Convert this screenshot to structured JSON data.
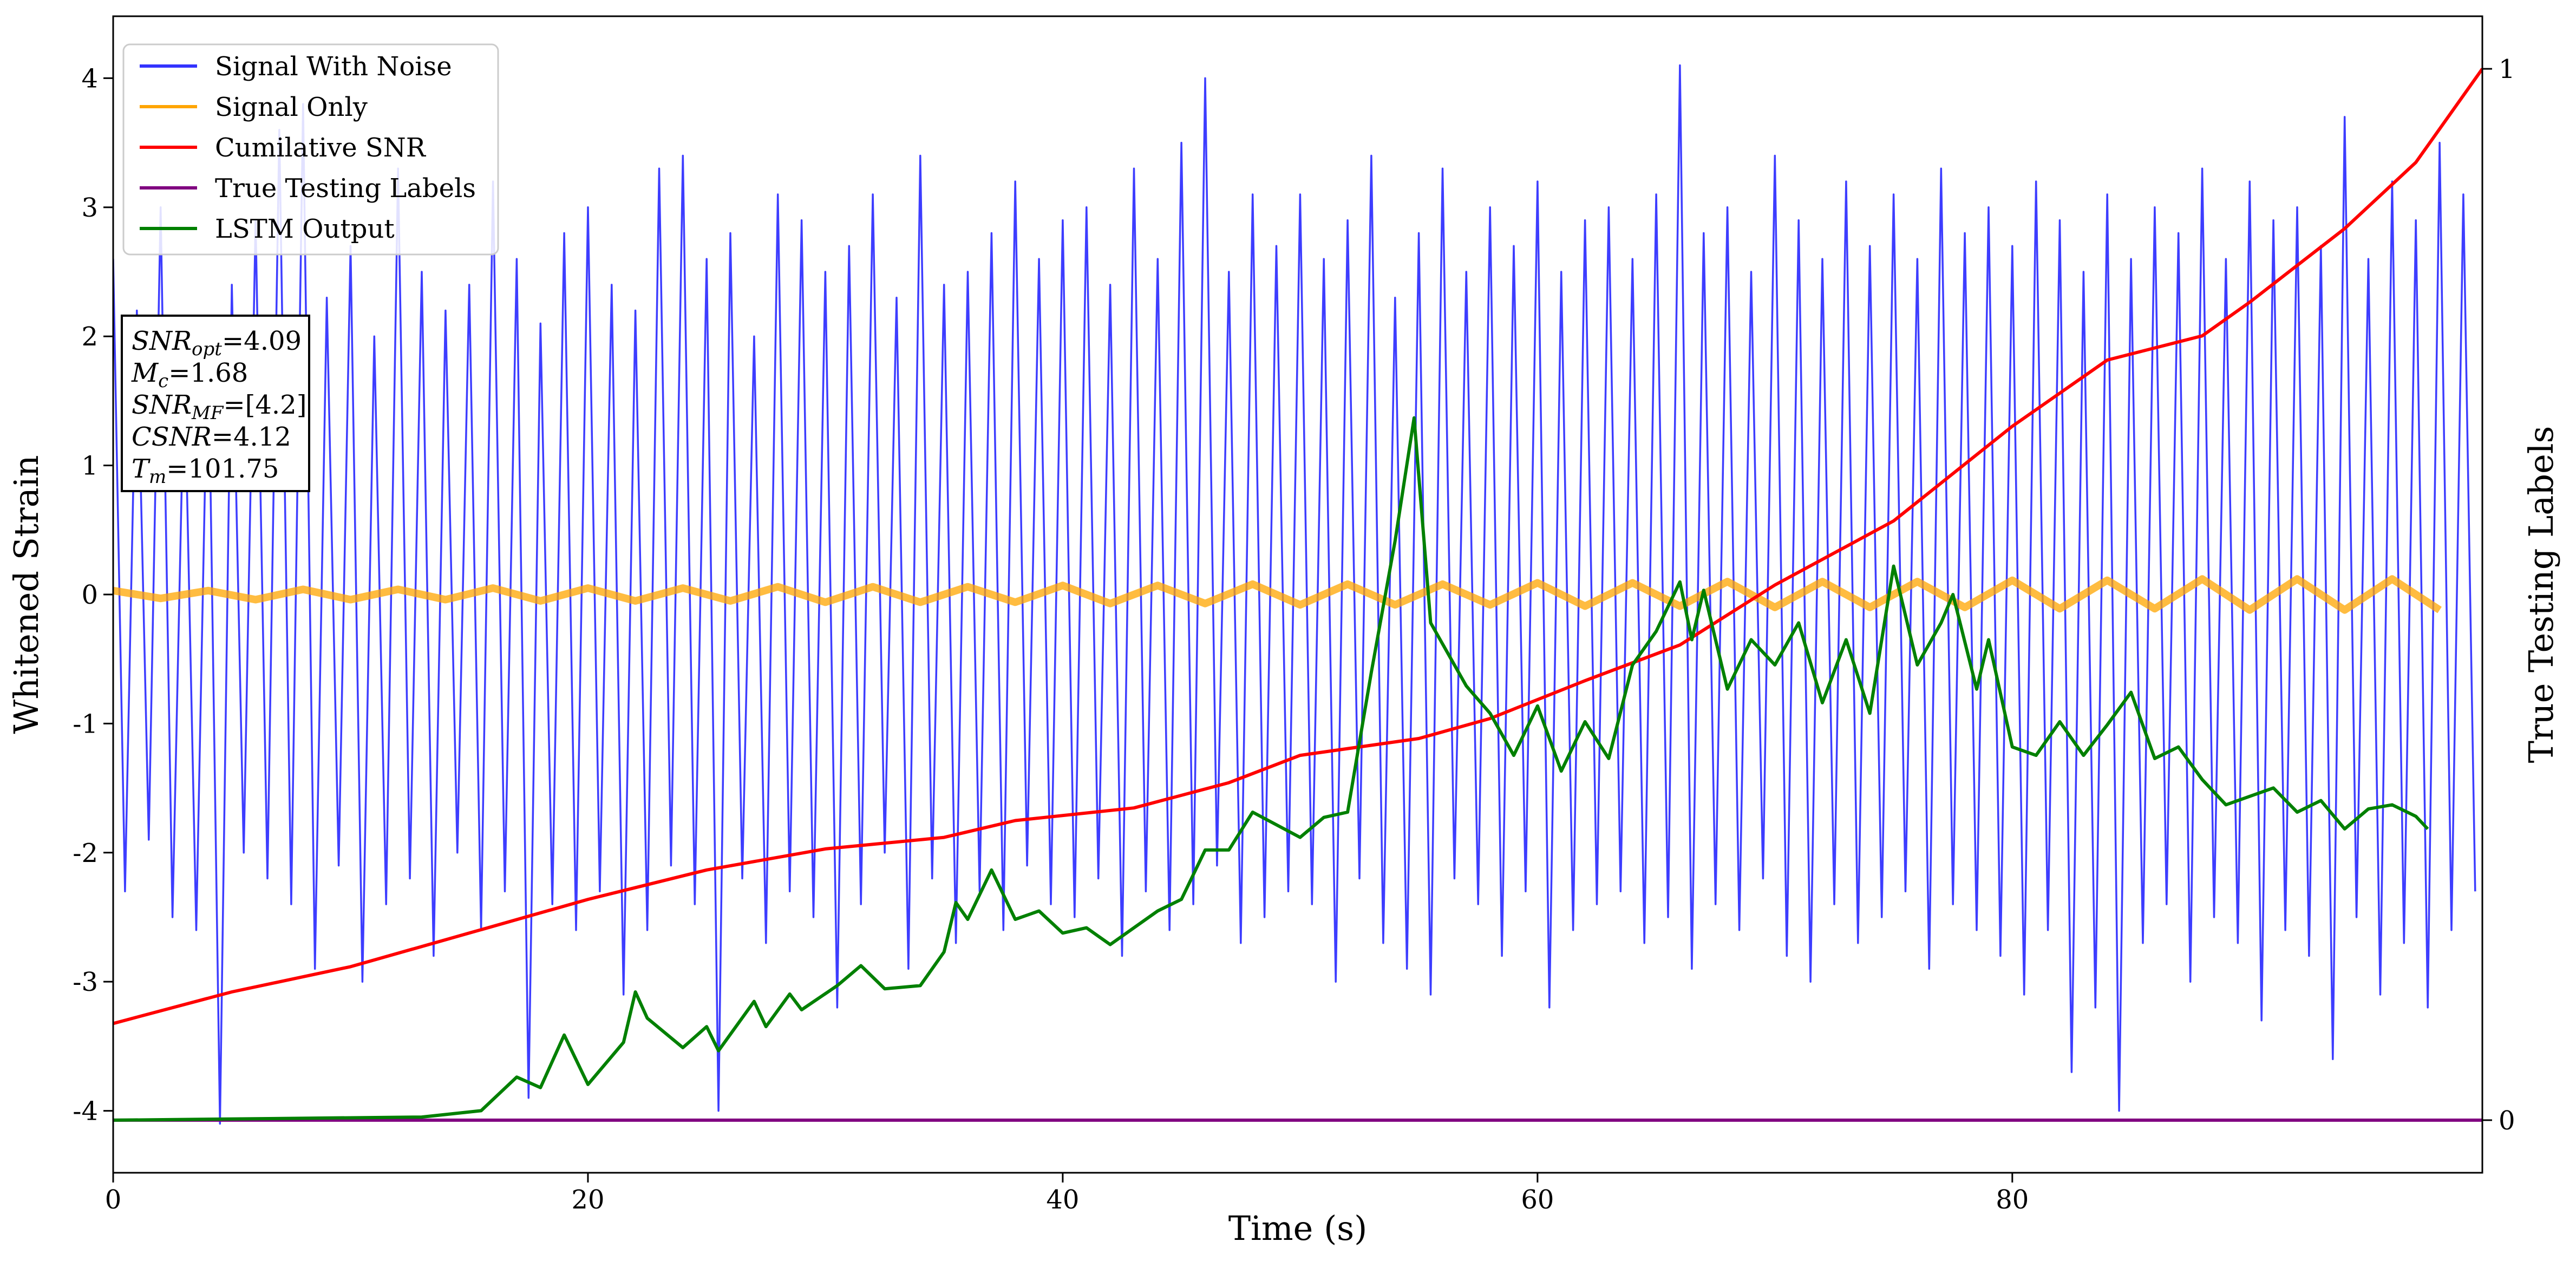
{
  "chart_data": {
    "type": "line",
    "xlabel": "Time (s)",
    "ylabel": "Whitened Strain",
    "y2label": "True Testing Labels",
    "xlim": [
      0,
      99.8
    ],
    "xticks": [
      0,
      20,
      40,
      60,
      80
    ],
    "ylim": [
      -4.48,
      4.48
    ],
    "yticks": [
      -4,
      -3,
      -2,
      -1,
      0,
      1,
      2,
      3,
      4
    ],
    "y2lim": [
      -0.05,
      1.05
    ],
    "y2ticks": [
      0,
      1
    ],
    "legend": "upper left",
    "annotation": [
      {
        "name": "SNR",
        "sub": "opt",
        "value": "=4.09"
      },
      {
        "name": "M",
        "sub": "c",
        "value": "=1.68"
      },
      {
        "name": "SNR",
        "sub": "MF",
        "value": "=[4.2]"
      },
      {
        "name": "CSNR",
        "value": "=4.12"
      },
      {
        "name": "T",
        "sub": "m",
        "value": "=101.75"
      }
    ],
    "series": [
      {
        "name": "Signal With Noise",
        "color": "#3333ff",
        "x": [
          0,
          0.5,
          1,
          1.5,
          2,
          2.5,
          3,
          3.5,
          4,
          4.5,
          5,
          5.5,
          6,
          6.5,
          7,
          7.5,
          8,
          8.5,
          9,
          9.5,
          10,
          10.5,
          11,
          11.5,
          12,
          12.5,
          13,
          13.5,
          14,
          14.5,
          15,
          15.5,
          16,
          16.5,
          17,
          17.5,
          18,
          18.5,
          19,
          19.5,
          20,
          20.5,
          21,
          21.5,
          22,
          22.5,
          23,
          23.5,
          24,
          24.5,
          25,
          25.5,
          26,
          26.5,
          27,
          27.5,
          28,
          28.5,
          29,
          29.5,
          30,
          30.5,
          31,
          31.5,
          32,
          32.5,
          33,
          33.5,
          34,
          34.5,
          35,
          35.5,
          36,
          36.5,
          37,
          37.5,
          38,
          38.5,
          39,
          39.5,
          40,
          40.5,
          41,
          41.5,
          42,
          42.5,
          43,
          43.5,
          44,
          44.5,
          45,
          45.5,
          46,
          46.5,
          47,
          47.5,
          48,
          48.5,
          49,
          49.5,
          50,
          50.5,
          51,
          51.5,
          52,
          52.5,
          53,
          53.5,
          54,
          54.5,
          55,
          55.5,
          56,
          56.5,
          57,
          57.5,
          58,
          58.5,
          59,
          59.5,
          60,
          60.5,
          61,
          61.5,
          62,
          62.5,
          63,
          63.5,
          64,
          64.5,
          65,
          65.5,
          66,
          66.5,
          67,
          67.5,
          68,
          68.5,
          69,
          69.5,
          70,
          70.5,
          71,
          71.5,
          72,
          72.5,
          73,
          73.5,
          74,
          74.5,
          75,
          75.5,
          76,
          76.5,
          77,
          77.5,
          78,
          78.5,
          79,
          79.5,
          80,
          80.5,
          81,
          81.5,
          82,
          82.5,
          83,
          83.5,
          84,
          84.5,
          85,
          85.5,
          86,
          86.5,
          87,
          87.5,
          88,
          88.5,
          89,
          89.5,
          90,
          90.5,
          91,
          91.5,
          92,
          92.5,
          93,
          93.5,
          94,
          94.5,
          95,
          95.5,
          96,
          96.5,
          97,
          97.5,
          98,
          98.5,
          99,
          99.5
        ],
        "values": [
          2.6,
          -2.3,
          2.2,
          -1.9,
          3.0,
          -2.5,
          1.8,
          -2.6,
          2.1,
          -4.1,
          2.4,
          -2.0,
          2.9,
          -2.2,
          3.6,
          -2.4,
          3.8,
          -2.9,
          2.3,
          -2.1,
          2.7,
          -3.0,
          2.0,
          -2.4,
          3.3,
          -2.2,
          2.5,
          -2.8,
          2.2,
          -2.0,
          2.4,
          -2.6,
          3.2,
          -2.3,
          2.6,
          -3.9,
          2.1,
          -2.4,
          2.8,
          -2.6,
          3.0,
          -2.3,
          2.4,
          -3.1,
          2.2,
          -2.6,
          3.3,
          -2.1,
          3.4,
          -2.4,
          2.6,
          -4.0,
          2.8,
          -2.2,
          2.0,
          -2.7,
          3.1,
          -2.3,
          2.9,
          -2.5,
          2.5,
          -3.2,
          2.7,
          -2.4,
          3.1,
          -2.0,
          2.3,
          -2.9,
          3.4,
          -2.2,
          2.4,
          -2.7,
          2.5,
          -2.3,
          2.8,
          -2.6,
          3.2,
          -2.1,
          2.6,
          -2.4,
          2.9,
          -2.5,
          3.0,
          -2.2,
          2.4,
          -2.8,
          3.3,
          -2.3,
          2.6,
          -2.6,
          3.5,
          -2.4,
          4.0,
          -2.1,
          2.5,
          -2.7,
          3.1,
          -2.5,
          2.7,
          -2.3,
          3.1,
          -2.4,
          2.6,
          -3.0,
          2.9,
          -2.2,
          3.4,
          -2.7,
          2.3,
          -2.9,
          2.8,
          -3.1,
          3.3,
          -2.2,
          2.5,
          -2.4,
          3.0,
          -2.8,
          2.7,
          -2.3,
          3.2,
          -3.2,
          2.5,
          -2.6,
          2.9,
          -2.4,
          3.0,
          -2.3,
          2.6,
          -2.7,
          3.1,
          -2.5,
          4.1,
          -2.9,
          2.8,
          -2.4,
          3.0,
          -2.6,
          2.5,
          -2.2,
          3.4,
          -2.8,
          2.9,
          -3.0,
          2.6,
          -2.4,
          3.2,
          -2.7,
          2.7,
          -2.5,
          3.1,
          -2.3,
          2.6,
          -2.9,
          3.3,
          -2.4,
          2.8,
          -2.6,
          3.0,
          -2.8,
          2.7,
          -3.1,
          3.2,
          -2.6,
          2.9,
          -3.7,
          2.5,
          -3.2,
          3.1,
          -4.0,
          2.6,
          -2.7,
          3.0,
          -2.4,
          2.8,
          -3.0,
          3.3,
          -2.5,
          2.6,
          -2.7,
          3.2,
          -3.3,
          2.9,
          -2.6,
          3.0,
          -2.8,
          2.7,
          -3.6,
          3.7,
          -2.5,
          2.6,
          -3.1,
          3.2,
          -2.7,
          2.9,
          -3.2,
          3.5,
          -2.6,
          3.1,
          -2.3
        ]
      },
      {
        "name": "Signal Only",
        "color": "orange",
        "x": [
          0,
          2,
          4,
          6,
          8,
          10,
          12,
          14,
          16,
          18,
          20,
          22,
          24,
          26,
          28,
          30,
          32,
          34,
          36,
          38,
          40,
          42,
          44,
          46,
          48,
          50,
          52,
          54,
          56,
          58,
          60,
          62,
          64,
          66,
          68,
          70,
          72,
          74,
          76,
          78,
          80,
          82,
          84,
          86,
          88,
          90,
          92,
          94,
          96,
          98
        ],
        "values": [
          0.03,
          -0.03,
          0.03,
          -0.04,
          0.04,
          -0.04,
          0.04,
          -0.04,
          0.05,
          -0.05,
          0.05,
          -0.05,
          0.05,
          -0.05,
          0.06,
          -0.06,
          0.06,
          -0.06,
          0.06,
          -0.06,
          0.07,
          -0.07,
          0.07,
          -0.07,
          0.08,
          -0.08,
          0.08,
          -0.08,
          0.08,
          -0.08,
          0.09,
          -0.09,
          0.09,
          -0.09,
          0.1,
          -0.1,
          0.1,
          -0.1,
          0.1,
          -0.1,
          0.11,
          -0.11,
          0.11,
          -0.11,
          0.12,
          -0.12,
          0.12,
          -0.12,
          0.12,
          -0.12
        ]
      },
      {
        "name": "Cumilative SNR",
        "color": "red",
        "axis": "y2",
        "x": [
          0,
          5,
          10,
          15,
          20,
          25,
          30,
          35,
          38,
          43,
          47,
          50,
          55,
          58,
          62,
          66,
          70,
          75,
          80,
          84,
          88,
          90,
          94,
          97,
          99.8
        ],
        "values": [
          0.092,
          0.122,
          0.146,
          0.178,
          0.21,
          0.238,
          0.258,
          0.269,
          0.285,
          0.297,
          0.321,
          0.347,
          0.363,
          0.382,
          0.418,
          0.452,
          0.509,
          0.57,
          0.66,
          0.723,
          0.746,
          0.778,
          0.848,
          0.911,
          1.0
        ]
      },
      {
        "name": "True Testing Labels",
        "color": "purple",
        "axis": "y2",
        "x": [
          0,
          99.8
        ],
        "values": [
          0,
          0
        ]
      },
      {
        "name": "LSTM Output",
        "color": "green",
        "axis": "y2",
        "x": [
          0,
          13,
          15.5,
          17,
          18,
          19,
          20,
          21.5,
          22,
          22.5,
          24,
          25,
          25.5,
          27,
          27.5,
          28.5,
          29,
          30.5,
          31.5,
          32.5,
          34,
          35,
          35.5,
          36,
          37,
          38,
          39,
          40,
          41,
          42,
          44,
          45,
          46,
          47,
          48,
          50,
          51,
          52,
          53,
          54,
          54.8,
          55.5,
          57,
          58,
          59,
          60,
          61,
          62,
          63,
          64,
          65,
          66,
          66.5,
          67,
          68,
          69,
          70,
          71,
          72,
          73,
          74,
          75,
          76,
          77,
          77.5,
          78.5,
          79,
          80,
          81,
          82,
          83,
          84,
          85,
          86,
          87,
          88,
          89,
          90,
          91,
          92,
          93,
          94,
          95,
          96,
          97,
          97.5
        ],
        "values": [
          0,
          0.003,
          0.009,
          0.041,
          0.031,
          0.081,
          0.034,
          0.074,
          0.122,
          0.097,
          0.069,
          0.089,
          0.066,
          0.113,
          0.089,
          0.12,
          0.105,
          0.128,
          0.147,
          0.125,
          0.128,
          0.16,
          0.207,
          0.191,
          0.238,
          0.191,
          0.199,
          0.178,
          0.183,
          0.167,
          0.199,
          0.21,
          0.257,
          0.257,
          0.293,
          0.269,
          0.288,
          0.293,
          0.426,
          0.551,
          0.668,
          0.473,
          0.413,
          0.387,
          0.347,
          0.394,
          0.332,
          0.379,
          0.344,
          0.433,
          0.465,
          0.512,
          0.457,
          0.504,
          0.41,
          0.457,
          0.433,
          0.473,
          0.397,
          0.457,
          0.387,
          0.527,
          0.433,
          0.473,
          0.5,
          0.41,
          0.457,
          0.355,
          0.347,
          0.379,
          0.347,
          0.376,
          0.407,
          0.344,
          0.355,
          0.324,
          0.3,
          0.308,
          0.316,
          0.293,
          0.304,
          0.277,
          0.296,
          0.3,
          0.289,
          0.277
        ]
      }
    ]
  }
}
